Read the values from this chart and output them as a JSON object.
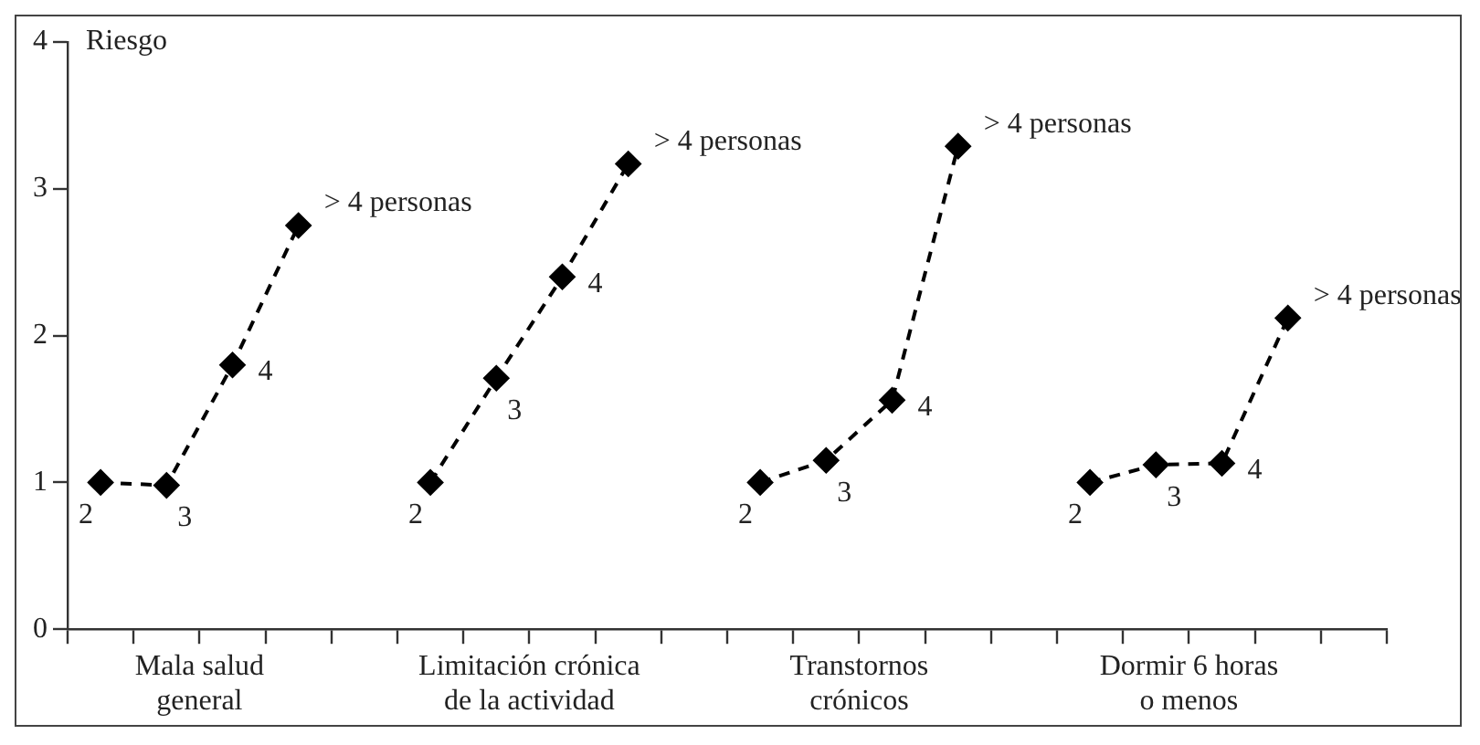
{
  "chart_data": {
    "type": "line",
    "ylabel": "Riesgo",
    "ylim": [
      0,
      4
    ],
    "yticks": [
      0,
      1,
      2,
      3,
      4
    ],
    "categories": [
      null,
      null,
      null,
      null,
      "Mala salud\ngeneral",
      null,
      null,
      null,
      null,
      null,
      null,
      null,
      null,
      null,
      "Limitación crónica\nde la actividad",
      null,
      null,
      null,
      null,
      null,
      null,
      null,
      null,
      null,
      "Transtornos\ncrónicos",
      null,
      null,
      null,
      null,
      null,
      null,
      null,
      null,
      null,
      "Dormir 6 horas\no menos",
      null,
      null,
      null,
      null,
      null,
      null
    ],
    "grid": false,
    "legend": false,
    "marker": "diamond",
    "line_style": "dashed",
    "series": [
      {
        "color": "#000000",
        "values": [
          null,
          1.0,
          null,
          0.98,
          null,
          1.8,
          null,
          2.75,
          null,
          null,
          null,
          null,
          null,
          null,
          null,
          null,
          null,
          null,
          null,
          null,
          null,
          null,
          null,
          null,
          null,
          null,
          null,
          null,
          null,
          null,
          null,
          null,
          null,
          null,
          null,
          null,
          null,
          null,
          null,
          null,
          null
        ]
      },
      {
        "color": "#000000",
        "values": [
          null,
          null,
          null,
          null,
          null,
          null,
          null,
          null,
          null,
          null,
          null,
          1.0,
          null,
          1.71,
          null,
          2.4,
          null,
          3.17,
          null,
          null,
          null,
          null,
          null,
          null,
          null,
          null,
          null,
          null,
          null,
          null,
          null,
          null,
          null,
          null,
          null,
          null,
          null,
          null,
          null,
          null,
          null
        ]
      },
      {
        "color": "#000000",
        "values": [
          null,
          null,
          null,
          null,
          null,
          null,
          null,
          null,
          null,
          null,
          null,
          null,
          null,
          null,
          null,
          null,
          null,
          null,
          null,
          null,
          null,
          1.0,
          null,
          1.15,
          null,
          1.56,
          null,
          3.29,
          null,
          null,
          null,
          null,
          null,
          null,
          null,
          null,
          null,
          null,
          null,
          null,
          null
        ]
      },
      {
        "color": "#000000",
        "values": [
          null,
          null,
          null,
          null,
          null,
          null,
          null,
          null,
          null,
          null,
          null,
          null,
          null,
          null,
          null,
          null,
          null,
          null,
          null,
          null,
          null,
          null,
          null,
          null,
          null,
          null,
          null,
          null,
          null,
          null,
          null,
          1.0,
          null,
          1.12,
          null,
          1.13,
          null,
          2.12,
          null,
          null,
          null
        ]
      }
    ],
    "annotations": [
      "2",
      "3",
      "4",
      "> 4 personas",
      "2",
      "3",
      "4",
      "> 4 personas",
      "2",
      "3",
      "4",
      "> 4 personas",
      "2",
      "3",
      "4",
      "> 4 personas"
    ]
  }
}
